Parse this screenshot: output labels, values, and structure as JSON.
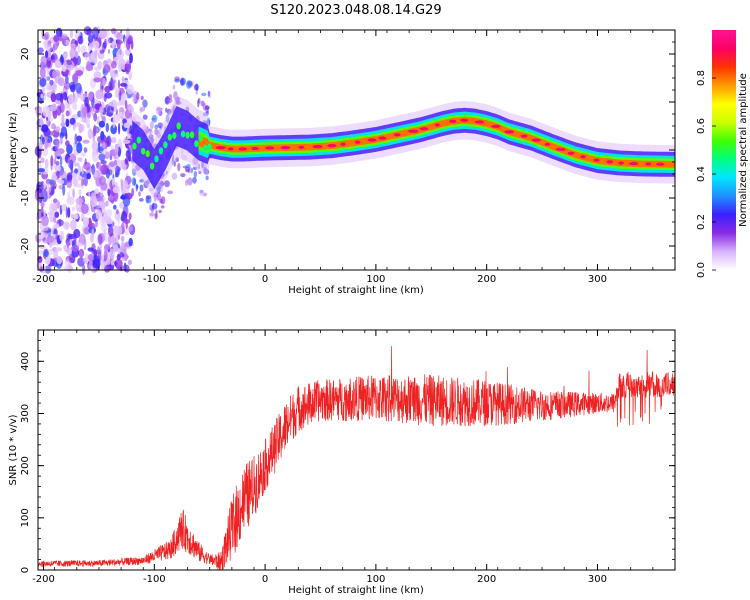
{
  "title": "S120.2023.048.08.14.G29",
  "chart_data": [
    {
      "type": "heatmap",
      "xlabel": "Height of straight line (km)",
      "ylabel": "Frequency (Hz)",
      "xlim": [
        -205,
        370
      ],
      "ylim": [
        -25,
        25
      ],
      "x_ticks": [
        -200,
        -100,
        0,
        100,
        200,
        300
      ],
      "y_ticks": [
        -20,
        -10,
        0,
        10,
        20
      ],
      "colorbar": {
        "label": "Normalized spectral amplitude",
        "range": [
          0,
          1
        ],
        "ticks": [
          0.0,
          0.2,
          0.4,
          0.6,
          0.8
        ],
        "stops": [
          "#ffffff",
          "#d9b3ff",
          "#8a2be2",
          "#3b1fff",
          "#1e90ff",
          "#00e5ff",
          "#00ff80",
          "#40ff00",
          "#ccff00",
          "#ffff00",
          "#ff9900",
          "#ff3300",
          "#ff0066",
          "#ff1493"
        ]
      },
      "ridge": {
        "x": [
          -120,
          -110,
          -100,
          -90,
          -80,
          -70,
          -60,
          -50,
          -40,
          -30,
          -20,
          -10,
          0,
          20,
          40,
          60,
          80,
          100,
          120,
          140,
          160,
          170,
          180,
          190,
          200,
          210,
          220,
          240,
          260,
          280,
          300,
          320,
          340,
          370
        ],
        "y": [
          2,
          0,
          -4,
          0,
          5,
          4,
          2,
          1,
          0.5,
          0.2,
          0.2,
          0.3,
          0.4,
          0.5,
          0.6,
          0.9,
          1.5,
          2.2,
          3.2,
          4.2,
          5.5,
          6.0,
          6.2,
          6.0,
          5.5,
          4.8,
          3.8,
          2.5,
          0.7,
          -1.0,
          -2.2,
          -2.7,
          -2.9,
          -3.0
        ]
      }
    },
    {
      "type": "line",
      "xlabel": "Height of straight line (km)",
      "ylabel": "SNR (10 * v/v)",
      "xlim": [
        -205,
        370
      ],
      "ylim": [
        0,
        460
      ],
      "x_ticks": [
        -200,
        -100,
        0,
        100,
        200,
        300
      ],
      "y_ticks": [
        0,
        100,
        200,
        300,
        400
      ],
      "series_color": "#ee2222",
      "envelope": {
        "x": [
          -205,
          -150,
          -110,
          -85,
          -75,
          -60,
          -50,
          -40,
          -30,
          -20,
          -10,
          0,
          10,
          20,
          30,
          50,
          100,
          150,
          200,
          250,
          300,
          315,
          320,
          370
        ],
        "mean": [
          12,
          13,
          18,
          40,
          80,
          35,
          20,
          15,
          80,
          130,
          160,
          200,
          240,
          280,
          310,
          325,
          330,
          325,
          320,
          315,
          320,
          320,
          355,
          355
        ],
        "spread": [
          6,
          6,
          8,
          20,
          40,
          20,
          10,
          20,
          60,
          70,
          60,
          50,
          50,
          50,
          45,
          40,
          45,
          50,
          45,
          30,
          20,
          20,
          25,
          25
        ]
      }
    }
  ]
}
